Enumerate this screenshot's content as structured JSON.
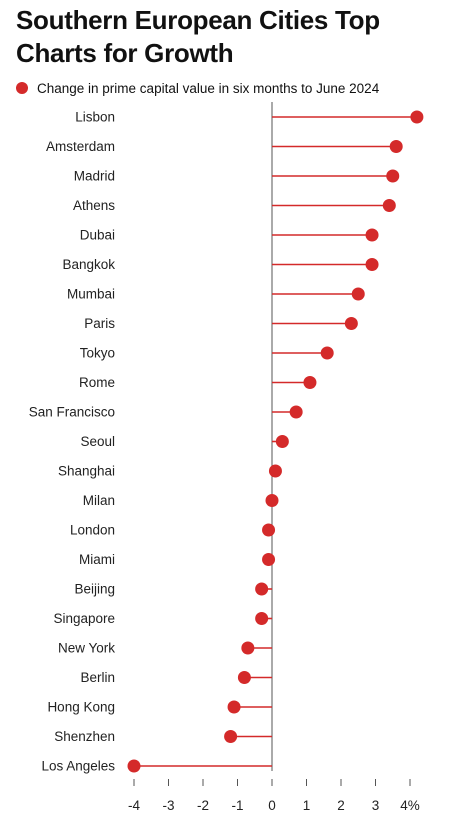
{
  "header": {
    "title": "Southern European Cities Top Charts for Growth"
  },
  "chart_data": {
    "type": "lollipop",
    "orientation": "horizontal",
    "title": "Southern European Cities Top Charts for Growth",
    "xlabel": "",
    "ylabel": "",
    "xlim": [
      -4,
      4
    ],
    "x_ticks": [
      -4,
      -3,
      -2,
      -1,
      0,
      1,
      2,
      3,
      4
    ],
    "x_tick_labels": [
      "-4",
      "-3",
      "-2",
      "-1",
      "0",
      "1",
      "2",
      "3",
      "4%"
    ],
    "grid": false,
    "legend_position": "top-left",
    "color": "#d42a2a",
    "series": [
      {
        "name": "Change in prime capital value in six months to June 2024",
        "categories": [
          "Lisbon",
          "Amsterdam",
          "Madrid",
          "Athens",
          "Dubai",
          "Bangkok",
          "Mumbai",
          "Paris",
          "Tokyo",
          "Rome",
          "San Francisco",
          "Seoul",
          "Shanghai",
          "Milan",
          "London",
          "Miami",
          "Beijing",
          "Singapore",
          "New York",
          "Berlin",
          "Hong Kong",
          "Shenzhen",
          "Los Angeles"
        ],
        "values": [
          4.2,
          3.6,
          3.5,
          3.4,
          2.9,
          2.9,
          2.5,
          2.3,
          1.6,
          1.1,
          0.7,
          0.3,
          0.1,
          0.0,
          -0.1,
          -0.1,
          -0.3,
          -0.3,
          -0.7,
          -0.8,
          -1.1,
          -1.2,
          -4.0
        ]
      }
    ]
  }
}
